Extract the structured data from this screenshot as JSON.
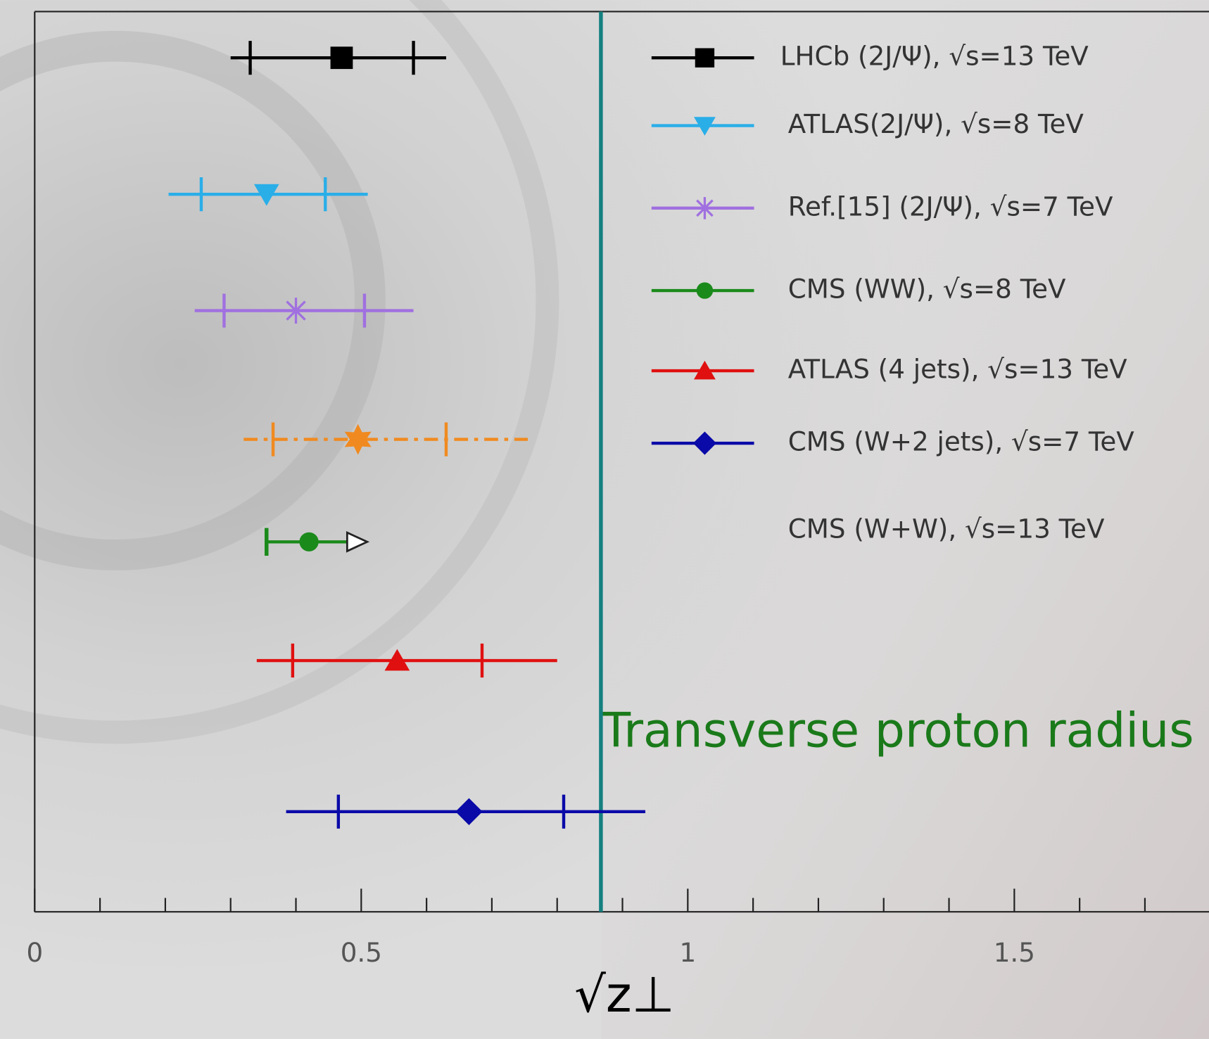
{
  "chart_data": {
    "type": "errorbar",
    "xlim": [
      0,
      1.8
    ],
    "xticks": [
      0,
      0.5,
      1,
      1.5
    ],
    "xminor": [
      0.1,
      0.2,
      0.3,
      0.4,
      0.6,
      0.7,
      0.8,
      0.9,
      1.1,
      1.2,
      1.3,
      1.4,
      1.6,
      1.7
    ],
    "x_label": "√z⊥",
    "reference_line": {
      "x": 0.867,
      "color": "#158080",
      "label": "Transverse proton radius",
      "label_color": "#1a7a1a"
    },
    "series": [
      {
        "name": "LHCb (2J/Ψ), √s=13 TeV",
        "color": "#000000",
        "marker": "square",
        "value": 0.47,
        "err_low": 0.14,
        "err_high": 0.11,
        "total_low": 0.17,
        "total_high": 0.16
      },
      {
        "name": "ATLAS(2J/Ψ), √s=8 TeV",
        "color": "#2aaee8",
        "marker": "triangle-down",
        "value": 0.355,
        "err_low": 0.1,
        "err_high": 0.09,
        "total_low": 0.15,
        "total_high": 0.155
      },
      {
        "name": "Ref.[15] (2J/Ψ), √s=7 TeV",
        "color": "#a070e0",
        "marker": "asterisk",
        "value": 0.4,
        "err_low": 0.11,
        "err_high": 0.105,
        "total_low": 0.155,
        "total_high": 0.18
      },
      {
        "name": "CMS (WW), √s=8 TeV",
        "color": "#1a8a1a",
        "marker": "circle",
        "value": 0.42,
        "err_low": null,
        "err_high": null,
        "total_low": 0.065,
        "total_high": 0.075,
        "lower_limit": true
      },
      {
        "name": "ATLAS (4 jets), √s=13 TeV",
        "color": "#e01010",
        "marker": "triangle-up",
        "value": 0.555,
        "err_low": 0.16,
        "err_high": 0.13,
        "total_low": 0.215,
        "total_high": 0.245
      },
      {
        "name": "CMS (W+2 jets), √s=7 TeV",
        "color": "#0a0aa8",
        "marker": "diamond",
        "value": 0.665,
        "err_low": 0.2,
        "err_high": 0.145,
        "total_low": 0.28,
        "total_high": 0.27
      },
      {
        "name": "CMS (W+W), √s=13 TeV",
        "color": "#f08a20",
        "marker": "star",
        "value": 0.495,
        "err_low": 0.13,
        "err_high": 0.135,
        "total_low": 0.175,
        "total_high": 0.26,
        "dashed": true,
        "legend_symbol": false
      }
    ]
  }
}
